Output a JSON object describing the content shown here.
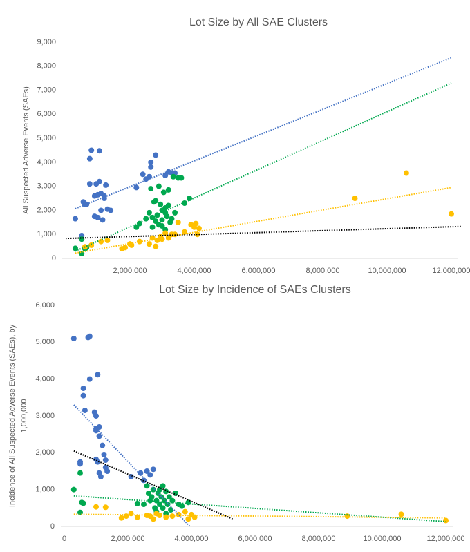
{
  "chart_data": [
    {
      "type": "scatter",
      "title": "Lot Size by All SAE Clusters",
      "ylabel": "All Suspected Adverse Events (SAEs)",
      "xlim": [
        0,
        12000000
      ],
      "ylim": [
        0,
        9000
      ],
      "xticks": [
        {
          "value": 2000000,
          "label": "2,000,000"
        },
        {
          "value": 4000000,
          "label": "4,000,000"
        },
        {
          "value": 6000000,
          "label": "6,000,000"
        },
        {
          "value": 8000000,
          "label": "8,000,000"
        },
        {
          "value": 10000000,
          "label": "10,000,000"
        },
        {
          "value": 12000000,
          "label": "12,000,000"
        }
      ],
      "yticks": [
        0,
        {
          "value": 1000,
          "label": "1,000"
        },
        {
          "value": 2000,
          "label": "2,000"
        },
        {
          "value": 3000,
          "label": "3,000"
        },
        {
          "value": 4000,
          "label": "4,000"
        },
        {
          "value": 5000,
          "label": "5,000"
        },
        {
          "value": 6000,
          "label": "6,000"
        },
        {
          "value": 7000,
          "label": "7,000"
        },
        {
          "value": 8000,
          "label": "8,000"
        },
        {
          "value": 9000,
          "label": "9,000"
        }
      ],
      "series": [
        {
          "color": "#4472c4",
          "x": [
            300000,
            500000,
            550000,
            600000,
            650000,
            750000,
            750000,
            800000,
            900000,
            900000,
            950000,
            1000000,
            1000000,
            1050000,
            1050000,
            1100000,
            1100000,
            1150000,
            1200000,
            1200000,
            1250000,
            1300000,
            1400000,
            2200000,
            2400000,
            2500000,
            2600000,
            2650000,
            2650000,
            2800000,
            3100000,
            3200000,
            3300000,
            3400000
          ],
          "values": [
            1650,
            950,
            2350,
            2250,
            2250,
            3100,
            4150,
            4500,
            1750,
            2600,
            3100,
            2650,
            1700,
            4480,
            3200,
            2700,
            2000,
            1600,
            2500,
            2600,
            3050,
            2050,
            2000,
            2950,
            3500,
            3300,
            3400,
            3800,
            4000,
            4300,
            3450,
            3600,
            3550,
            3550
          ]
        },
        {
          "color": "#00a84f",
          "x": [
            300000,
            500000,
            600000,
            650000,
            500000,
            2200000,
            2300000,
            2500000,
            2600000,
            2650000,
            2700000,
            2750000,
            2800000,
            2800000,
            2850000,
            2900000,
            2900000,
            2950000,
            3000000,
            3000000,
            3050000,
            3100000,
            3100000,
            3150000,
            3200000,
            3200000,
            3250000,
            3300000,
            3350000,
            3400000,
            3500000,
            3600000,
            3700000,
            3850000,
            2700000,
            3000000,
            3100000
          ],
          "values": [
            420,
            200,
            400,
            450,
            800,
            1300,
            1450,
            1650,
            1900,
            2900,
            1700,
            2350,
            2400,
            1550,
            1800,
            3000,
            1400,
            2250,
            2000,
            1600,
            2750,
            1900,
            2100,
            1750,
            2850,
            2200,
            1500,
            1650,
            3400,
            1900,
            3350,
            3350,
            2300,
            2500,
            1300,
            1350,
            1200
          ]
        },
        {
          "color": "#ffc000",
          "x": [
            600000,
            800000,
            1100000,
            1300000,
            1750000,
            1850000,
            2000000,
            2050000,
            2300000,
            2600000,
            2700000,
            2800000,
            2850000,
            2950000,
            3000000,
            3100000,
            3200000,
            3300000,
            3400000,
            3500000,
            3700000,
            3900000,
            4000000,
            4050000,
            4100000,
            4150000,
            9000000,
            10600000,
            12000000
          ],
          "values": [
            480,
            550,
            700,
            750,
            400,
            450,
            600,
            550,
            700,
            600,
            850,
            500,
            750,
            900,
            800,
            1050,
            850,
            1000,
            1000,
            1500,
            1100,
            1400,
            1300,
            1450,
            1000,
            1250,
            2500,
            3550,
            1850
          ]
        }
      ],
      "trendlines": [
        {
          "color": "#4472c4",
          "x": [
            300000,
            12000000
          ],
          "values": [
            2070,
            8350
          ]
        },
        {
          "color": "#00a84f",
          "x": [
            300000,
            12000000
          ],
          "values": [
            300,
            7300
          ]
        },
        {
          "color": "#ffc000",
          "x": [
            300000,
            12000000
          ],
          "values": [
            220,
            2950
          ]
        },
        {
          "color": "#000000",
          "x": [
            0,
            12300000
          ],
          "values": [
            830,
            1330
          ]
        }
      ]
    },
    {
      "type": "scatter",
      "title": "Lot Size by Incidence of SAEs Clusters",
      "ylabel": [
        "Incidence of All Suspected Adverse Events (SAEs), by",
        "1,000,000"
      ],
      "xlim": [
        0,
        12000000
      ],
      "ylim": [
        0,
        6000
      ],
      "xticks": [
        0,
        {
          "value": 2000000,
          "label": "2,000,000"
        },
        {
          "value": 4000000,
          "label": "4,000,000"
        },
        {
          "value": 6000000,
          "label": "6,000,000"
        },
        {
          "value": 8000000,
          "label": "8,000,000"
        },
        {
          "value": 10000000,
          "label": "10,000,000"
        },
        {
          "value": 12000000,
          "label": "12,000,000"
        }
      ],
      "yticks": [
        0,
        {
          "value": 1000,
          "label": "1,000"
        },
        {
          "value": 2000,
          "label": "2,000"
        },
        {
          "value": 3000,
          "label": "3,000"
        },
        {
          "value": 4000,
          "label": "4,000"
        },
        {
          "value": 5000,
          "label": "5,000"
        },
        {
          "value": 6000,
          "label": "6,000"
        }
      ],
      "series": [
        {
          "color": "#4472c4",
          "x": [
            300000,
            750000,
            800000,
            800000,
            1050000,
            600000,
            600000,
            650000,
            950000,
            1000000,
            1000000,
            1000000,
            1100000,
            1100000,
            1200000,
            1250000,
            1300000,
            1000000,
            1050000,
            500000,
            500000,
            1100000,
            1150000,
            1300000,
            1350000,
            2100000,
            2400000,
            2600000,
            2700000,
            2800000,
            2500000
          ],
          "values": [
            5100,
            5130,
            5160,
            4000,
            4120,
            3750,
            3550,
            3150,
            3100,
            3000,
            2650,
            2600,
            2700,
            2450,
            2200,
            1950,
            1800,
            1820,
            1750,
            1700,
            1750,
            1450,
            1350,
            1600,
            1500,
            1350,
            1450,
            1500,
            1400,
            1550,
            1250
          ]
        },
        {
          "color": "#00a84f",
          "x": [
            300000,
            500000,
            550000,
            500000,
            600000,
            2300000,
            2500000,
            2600000,
            2650000,
            2700000,
            2750000,
            2800000,
            2850000,
            2900000,
            2950000,
            3000000,
            3000000,
            3050000,
            3100000,
            3100000,
            3150000,
            3200000,
            3250000,
            3300000,
            3350000,
            3400000,
            3500000,
            3600000,
            3700000,
            3900000,
            2900000,
            3200000
          ],
          "values": [
            1000,
            1450,
            650,
            380,
            630,
            620,
            600,
            1100,
            900,
            700,
            800,
            1000,
            500,
            700,
            900,
            600,
            1000,
            800,
            500,
            1100,
            700,
            950,
            600,
            800,
            450,
            700,
            900,
            600,
            550,
            650,
            400,
            350
          ]
        },
        {
          "color": "#ffc000",
          "x": [
            1000000,
            1300000,
            1800000,
            1950000,
            2100000,
            2300000,
            2600000,
            2700000,
            2800000,
            3000000,
            3200000,
            3400000,
            3600000,
            3800000,
            4000000,
            4100000,
            3900000,
            2900000,
            8900000,
            10600000,
            12000000
          ],
          "values": [
            530,
            520,
            230,
            280,
            350,
            250,
            300,
            280,
            200,
            300,
            250,
            280,
            320,
            400,
            320,
            250,
            200,
            350,
            280,
            330,
            160
          ]
        }
      ],
      "trendlines": [
        {
          "color": "#4472c4",
          "x": [
            300000,
            3950000
          ],
          "values": [
            3300,
            0
          ]
        },
        {
          "color": "#00a84f",
          "x": [
            300000,
            12000000
          ],
          "values": [
            830,
            130
          ]
        },
        {
          "color": "#ffc000",
          "x": [
            300000,
            12000000
          ],
          "values": [
            330,
            230
          ]
        },
        {
          "color": "#000000",
          "x": [
            300000,
            5300000
          ],
          "values": [
            2050,
            200
          ]
        }
      ]
    }
  ]
}
